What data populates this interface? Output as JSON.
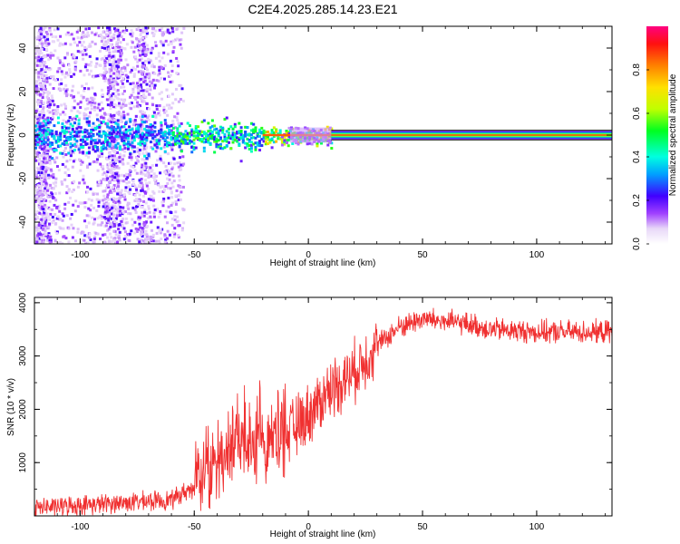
{
  "chart_data": [
    {
      "type": "heatmap",
      "title": "C2E4.2025.285.14.23.E21",
      "xlabel": "Height of straight line (km)",
      "ylabel": "Frequency (Hz)",
      "xlim": [
        -120,
        133
      ],
      "ylim": [
        -50,
        50
      ],
      "xticks": [
        "-100",
        "-50",
        "0",
        "50",
        "100"
      ],
      "yticks": [
        "40",
        "20",
        "0",
        "-20",
        "-40"
      ],
      "colorbar": {
        "label": "Normalized spectral amplitude",
        "range": [
          0,
          1
        ],
        "ticks": [
          "0.0",
          "0.2",
          "0.4",
          "0.6",
          "0.8"
        ]
      },
      "description_points": {
        "signal_band_center_hz": 0,
        "signal_band_halfwidth_hz": 2,
        "noise_scatter_extent_km": [
          -120,
          -55
        ],
        "signal_onset_km": 10
      }
    },
    {
      "type": "line",
      "xlabel": "Height of straight line (km)",
      "ylabel": "SNR (10 * v/v)",
      "xlim": [
        -120,
        133
      ],
      "ylim": [
        0,
        4100
      ],
      "xticks": [
        "-100",
        "-50",
        "0",
        "50",
        "100"
      ],
      "yticks": [
        "1000",
        "2000",
        "3000",
        "4000"
      ],
      "series": [
        {
          "name": "SNR",
          "color": "#f03030",
          "trend_x": [
            -120,
            -100,
            -80,
            -60,
            -50,
            -40,
            -30,
            -20,
            -10,
            0,
            10,
            20,
            30,
            40,
            50,
            60,
            70,
            80,
            100,
            120,
            133
          ],
          "trend_y": [
            150,
            200,
            250,
            300,
            550,
            900,
            1300,
            1350,
            1500,
            1900,
            2400,
            2700,
            3200,
            3550,
            3700,
            3650,
            3600,
            3500,
            3450,
            3450,
            3450
          ]
        }
      ]
    }
  ]
}
